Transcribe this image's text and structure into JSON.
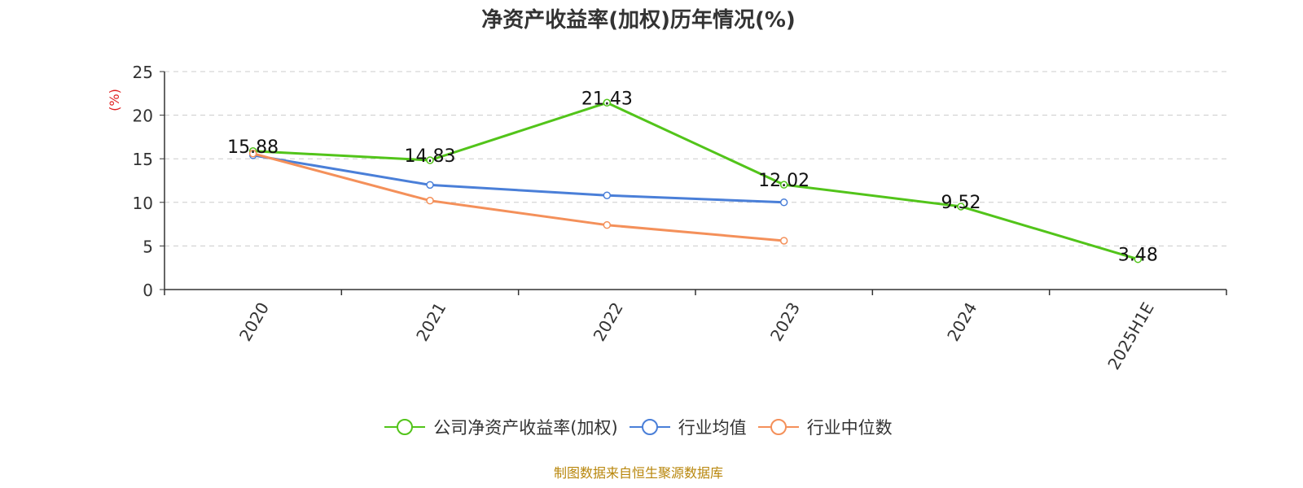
{
  "chart_data": {
    "type": "line",
    "title": "净资产收益率(加权)历年情况(%)",
    "ylabel": "(%)",
    "xlabel": "",
    "categories": [
      "2020",
      "2021",
      "2022",
      "2023",
      "2024",
      "2025H1E"
    ],
    "yticks": [
      0,
      5,
      10,
      15,
      20,
      25
    ],
    "ylim": [
      0,
      25
    ],
    "grid": true,
    "legend_position": "bottom",
    "series": [
      {
        "name": "公司净资产收益率(加权)",
        "color": "#52c41a",
        "values": [
          15.88,
          14.83,
          21.43,
          12.02,
          9.52,
          3.48
        ],
        "labels": [
          "15.88",
          "14.83",
          "21.43",
          "12.02",
          "9.52",
          "3.48"
        ]
      },
      {
        "name": "行业均值",
        "color": "#4a7fd8",
        "values": [
          15.4,
          12.0,
          10.8,
          10.0,
          null,
          null
        ]
      },
      {
        "name": "行业中位数",
        "color": "#f4905a",
        "values": [
          15.6,
          10.2,
          7.4,
          5.6,
          null,
          null
        ]
      }
    ]
  },
  "source_note": "制图数据来自恒生聚源数据库",
  "colors": {
    "ylabel": "#e02020",
    "source_note": "#b8860b",
    "axis": "#333333",
    "grid": "#cccccc"
  }
}
